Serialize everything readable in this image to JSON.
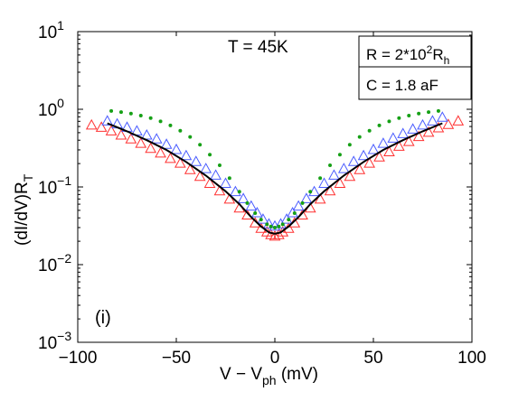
{
  "chart_data": {
    "type": "scatter",
    "panel_label": "(i)",
    "annotation": "T = 45K",
    "legend_box": {
      "line1": {
        "prefix": "R = 2*10",
        "sup": "2",
        "mid": "R",
        "sub": "h"
      },
      "line2": "C = 1.8 aF"
    },
    "ylabel": {
      "main": "(dI/dV)R",
      "sub": "T"
    },
    "xlabel": {
      "main": "V − V",
      "sub": "ph",
      "suffix": " (mV)"
    },
    "xlim": [
      -100,
      100
    ],
    "ylim": [
      0.001,
      10
    ],
    "yscale": "log",
    "xticks": [
      -100,
      -50,
      0,
      50,
      100
    ],
    "xtick_labels": [
      "−100",
      "−50",
      "0",
      "50",
      "100"
    ],
    "yticks": [
      {
        "value": 10,
        "base": "10",
        "exp": "1"
      },
      {
        "value": 1,
        "base": "10",
        "exp": "0"
      },
      {
        "value": 0.1,
        "base": "10",
        "exp": "−1"
      },
      {
        "value": 0.01,
        "base": "10",
        "exp": "−2"
      },
      {
        "value": 0.001,
        "base": "10",
        "exp": "−3"
      }
    ],
    "series": [
      {
        "marker": "triangle-red",
        "color": "#ff3030",
        "x": [
          -93,
          -88,
          -83,
          -78,
          -73,
          -68,
          -63,
          -58,
          -53,
          -48,
          -43,
          -38,
          -33,
          -28,
          -23,
          -18,
          -14,
          -10,
          -7,
          -4,
          -2,
          0,
          2,
          4,
          7,
          10,
          14,
          18,
          23,
          28,
          33,
          38,
          43,
          48,
          53,
          58,
          63,
          68,
          73,
          78,
          83,
          88,
          93
        ],
        "y": [
          0.62,
          0.58,
          0.52,
          0.46,
          0.41,
          0.36,
          0.31,
          0.27,
          0.23,
          0.2,
          0.165,
          0.135,
          0.11,
          0.088,
          0.069,
          0.053,
          0.043,
          0.034,
          0.029,
          0.026,
          0.024,
          0.023,
          0.024,
          0.026,
          0.029,
          0.034,
          0.043,
          0.053,
          0.069,
          0.088,
          0.11,
          0.135,
          0.165,
          0.2,
          0.24,
          0.28,
          0.33,
          0.38,
          0.44,
          0.5,
          0.57,
          0.63,
          0.7
        ]
      },
      {
        "marker": "triangle-blue",
        "color": "#4a5cff",
        "x": [
          -85,
          -80,
          -75,
          -70,
          -65,
          -60,
          -55,
          -50,
          -45,
          -40,
          -35,
          -30,
          -25,
          -20,
          -16,
          -12,
          -9,
          -6,
          -3,
          0,
          3,
          6,
          9,
          12,
          16,
          20,
          25,
          30,
          35,
          40,
          45,
          50,
          55,
          60,
          65,
          70,
          75,
          80,
          85
        ],
        "y": [
          0.7,
          0.64,
          0.58,
          0.52,
          0.46,
          0.41,
          0.35,
          0.3,
          0.25,
          0.21,
          0.17,
          0.14,
          0.11,
          0.086,
          0.07,
          0.056,
          0.046,
          0.038,
          0.033,
          0.031,
          0.033,
          0.038,
          0.046,
          0.056,
          0.07,
          0.086,
          0.11,
          0.14,
          0.17,
          0.21,
          0.25,
          0.3,
          0.36,
          0.42,
          0.48,
          0.55,
          0.62,
          0.7,
          0.78
        ]
      },
      {
        "marker": "dot-green",
        "color": "#16a016",
        "x": [
          -83,
          -78,
          -73,
          -68,
          -63,
          -58,
          -53,
          -48,
          -43,
          -38,
          -33,
          -28,
          -23,
          -18,
          -14,
          -10,
          -7,
          -4,
          -2,
          0,
          2,
          4,
          7,
          10,
          14,
          18,
          23,
          28,
          33,
          38,
          43,
          48,
          53,
          58,
          63,
          68,
          73,
          78,
          83
        ],
        "y": [
          0.95,
          0.92,
          0.88,
          0.83,
          0.77,
          0.7,
          0.62,
          0.53,
          0.44,
          0.35,
          0.26,
          0.19,
          0.13,
          0.087,
          0.062,
          0.046,
          0.038,
          0.033,
          0.031,
          0.03,
          0.031,
          0.033,
          0.038,
          0.046,
          0.062,
          0.087,
          0.13,
          0.19,
          0.26,
          0.35,
          0.44,
          0.53,
          0.62,
          0.7,
          0.77,
          0.83,
          0.88,
          0.92,
          0.95
        ]
      },
      {
        "marker": "line-black",
        "color": "#000000",
        "x": [
          -85,
          -75,
          -65,
          -55,
          -45,
          -35,
          -25,
          -18,
          -12,
          -7,
          -3,
          0,
          3,
          7,
          12,
          18,
          25,
          35,
          45,
          55,
          65,
          75,
          85
        ],
        "y": [
          0.66,
          0.52,
          0.4,
          0.3,
          0.21,
          0.14,
          0.088,
          0.06,
          0.041,
          0.031,
          0.026,
          0.025,
          0.026,
          0.031,
          0.041,
          0.06,
          0.088,
          0.14,
          0.21,
          0.3,
          0.4,
          0.52,
          0.66
        ]
      }
    ]
  }
}
